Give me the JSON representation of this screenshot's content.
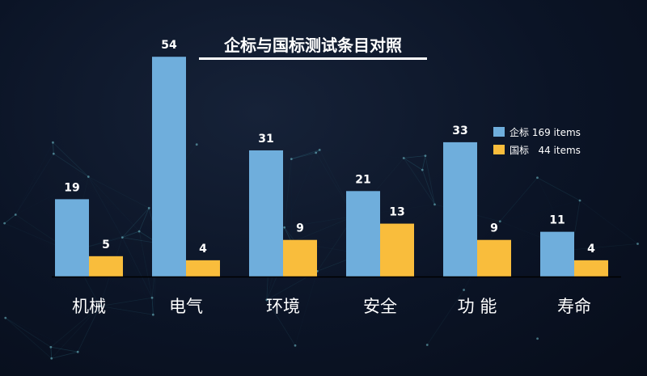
{
  "chart_data": {
    "type": "bar",
    "title": "企标与国标测试条目对照",
    "categories": [
      "机械",
      "电气",
      "环境",
      "安全",
      "功 能",
      "寿命"
    ],
    "series": [
      {
        "name": "企标 169 items",
        "color": "#6faedc",
        "values": [
          19,
          54,
          31,
          21,
          33,
          11
        ]
      },
      {
        "name": "国标   44 items",
        "color": "#f9bd3c",
        "values": [
          5,
          4,
          9,
          13,
          9,
          4
        ]
      }
    ],
    "ylim": [
      0,
      60
    ],
    "grid": false,
    "legend": "top-right"
  }
}
